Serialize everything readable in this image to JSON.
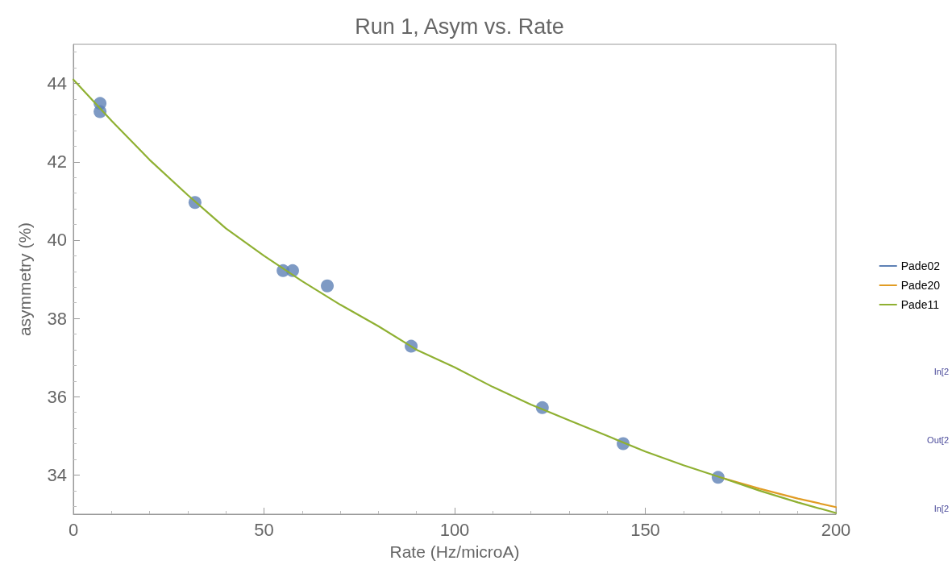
{
  "chart_data": {
    "type": "line",
    "title": "Run 1, Asym vs. Rate",
    "xlabel": "Rate (Hz/microA)",
    "ylabel": "asymmetry (%)",
    "xlim": [
      0,
      200
    ],
    "xticks": [
      0,
      50,
      100,
      150,
      200
    ],
    "ylim": [
      33,
      45
    ],
    "yticks": [
      34,
      36,
      38,
      40,
      42,
      44
    ],
    "grid": false,
    "legend": "right",
    "line_style": "solid",
    "annotations": [
      "In[2",
      "Out[2",
      "In[2"
    ],
    "series": [
      {
        "type": "scatter",
        "marker": "circle",
        "color": "#5e81b5",
        "x": [
          7,
          7,
          31.9,
          55,
          57.5,
          66.6,
          88.6,
          123,
          144.2,
          169.1
        ],
        "values": [
          43.49,
          43.28,
          40.96,
          39.22,
          39.22,
          38.83,
          37.29,
          35.72,
          34.8,
          33.94
        ]
      },
      {
        "name": "Pade02",
        "color": "#5e81b5",
        "marker": "none"
      },
      {
        "name": "Pade20",
        "color": "#e19c24",
        "marker": "none",
        "x": [
          170,
          180,
          190,
          200
        ],
        "values": [
          33.93,
          33.65,
          33.4,
          33.18
        ]
      },
      {
        "name": "Pade11",
        "color": "#8fb032",
        "marker": "none",
        "x": [
          0,
          10,
          20,
          30,
          40,
          50,
          60,
          70,
          80,
          90,
          100,
          110,
          120,
          130,
          140,
          150,
          160,
          170,
          180,
          190,
          200
        ],
        "values": [
          44.1,
          43.05,
          42.05,
          41.15,
          40.3,
          39.6,
          38.95,
          38.35,
          37.8,
          37.2,
          36.75,
          36.25,
          35.8,
          35.4,
          35.0,
          34.6,
          34.25,
          33.93,
          33.6,
          33.3,
          33.03
        ]
      }
    ]
  }
}
